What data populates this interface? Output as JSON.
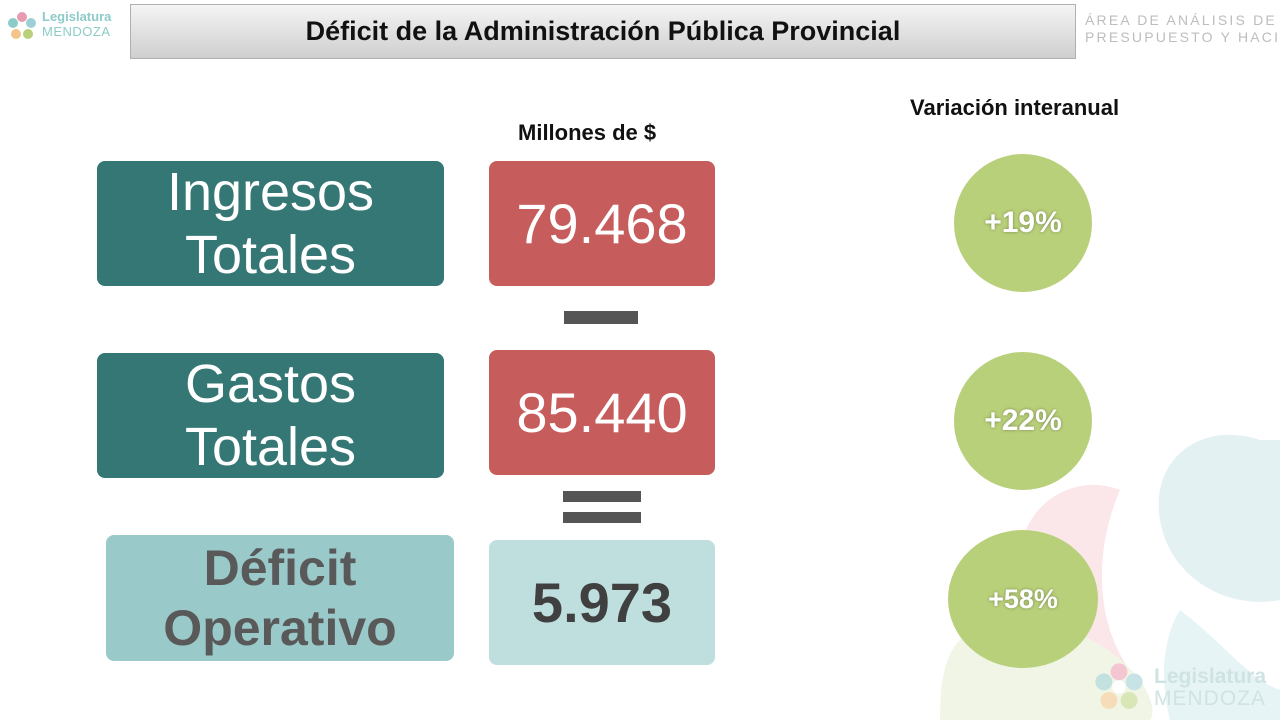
{
  "header": {
    "logo_line1": "Legislatura",
    "logo_line2": "MENDOZA",
    "title": "Déficit de la Administración Pública Provincial",
    "area_line1": "ÁREA DE ANÁLISIS DE",
    "area_line2": "PRESUPUESTO Y HACIENDA"
  },
  "columns": {
    "amount_header": "Millones de $",
    "variation_header": "Variación interanual"
  },
  "rows": [
    {
      "label_line1": "Ingresos",
      "label_line2": "Totales",
      "value": "79.468",
      "variation": "+19%"
    },
    {
      "label_line1": "Gastos",
      "label_line2": "Totales",
      "value": "85.440",
      "variation": "+22%"
    },
    {
      "label_line1": "Déficit",
      "label_line2": "Operativo",
      "value": "5.973",
      "variation": "+58%"
    }
  ],
  "operators": {
    "minus": "minus-sign",
    "equals": "equals-sign"
  },
  "colors": {
    "label_dark": "#347774",
    "label_light": "#9ac9c9",
    "value_red": "#c75c5c",
    "value_pale": "#bfdede",
    "circle_green": "#b9d07a"
  },
  "footer": {
    "logo_line1": "Legislatura",
    "logo_line2": "MENDOZA"
  }
}
